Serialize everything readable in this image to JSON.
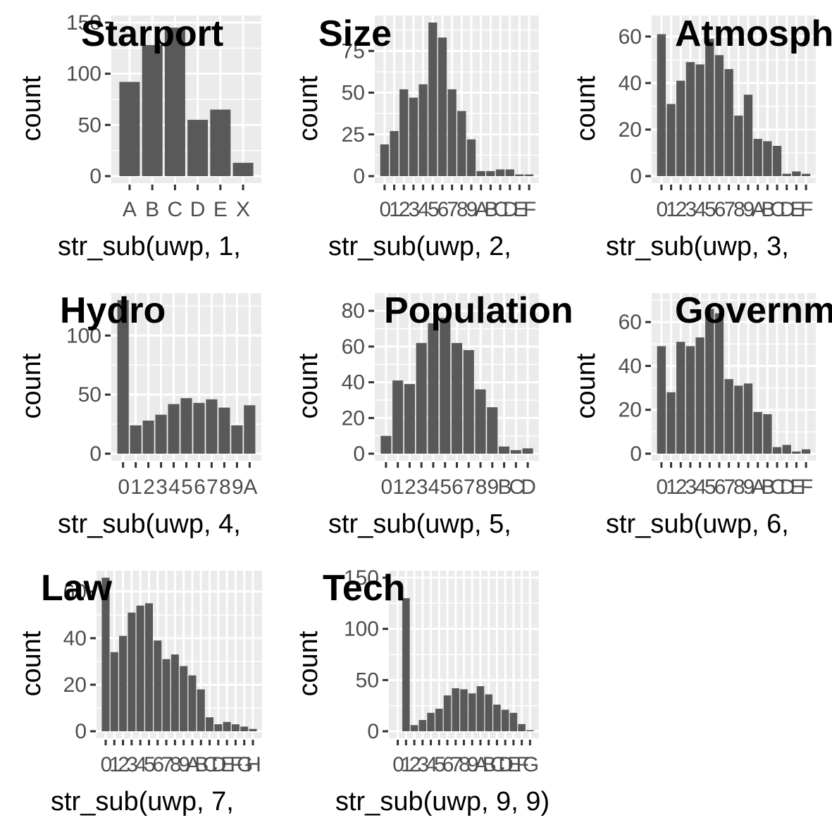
{
  "chart_data": [
    {
      "type": "bar",
      "title": "Starport",
      "xlabel": "str_sub(uwp, 1,",
      "ylabel": "count",
      "categories": [
        "A",
        "B",
        "C",
        "D",
        "E",
        "X"
      ],
      "values": [
        92,
        128,
        145,
        55,
        65,
        13
      ],
      "ylim": [
        0,
        150
      ],
      "yticks": [
        "0",
        "50",
        "100",
        "150"
      ],
      "grid": true,
      "legend": "none"
    },
    {
      "type": "bar",
      "title": "Size",
      "xlabel": "str_sub(uwp, 2,",
      "ylabel": "count",
      "categories": [
        "0",
        "1",
        "2",
        "3",
        "4",
        "5",
        "6",
        "7",
        "8",
        "9",
        "A",
        "B",
        "C",
        "D",
        "E",
        "F"
      ],
      "values": [
        19,
        27,
        52,
        47,
        55,
        92,
        83,
        52,
        39,
        22,
        3,
        3,
        4,
        4,
        1,
        1
      ],
      "ylim": [
        0,
        92
      ],
      "yticks": [
        "0",
        "25",
        "50",
        "75"
      ],
      "grid": true,
      "legend": "none"
    },
    {
      "type": "bar",
      "title": "Atmosphere",
      "xlabel": "str_sub(uwp, 3,",
      "ylabel": "count",
      "categories": [
        "0",
        "1",
        "2",
        "3",
        "4",
        "5",
        "6",
        "7",
        "8",
        "9",
        "A",
        "B",
        "C",
        "D",
        "E",
        "F"
      ],
      "values": [
        61,
        31,
        41,
        49,
        48,
        59,
        52,
        46,
        26,
        35,
        16,
        15,
        13,
        1,
        2,
        1
      ],
      "ylim": [
        0,
        66
      ],
      "yticks": [
        "0",
        "20",
        "40",
        "60"
      ],
      "grid": true,
      "legend": "none"
    },
    {
      "type": "bar",
      "title": "Hydro",
      "xlabel": "str_sub(uwp, 4,",
      "ylabel": "count",
      "categories": [
        "0",
        "1",
        "2",
        "3",
        "4",
        "5",
        "6",
        "7",
        "8",
        "9",
        "A"
      ],
      "values": [
        130,
        24,
        28,
        33,
        42,
        47,
        43,
        46,
        39,
        24,
        41
      ],
      "ylim": [
        0,
        130
      ],
      "yticks": [
        "0",
        "50",
        "100"
      ],
      "grid": true,
      "legend": "none"
    },
    {
      "type": "bar",
      "title": "Population",
      "xlabel": "str_sub(uwp, 5,",
      "ylabel": "count",
      "categories": [
        "0",
        "1",
        "2",
        "3",
        "4",
        "5",
        "6",
        "7",
        "8",
        "9",
        "B",
        "C",
        "D"
      ],
      "values": [
        10,
        41,
        39,
        62,
        73,
        76,
        62,
        58,
        36,
        26,
        4,
        2,
        3
      ],
      "ylim": [
        0,
        86
      ],
      "yticks": [
        "0",
        "20",
        "40",
        "60",
        "80"
      ],
      "grid": true,
      "legend": "none"
    },
    {
      "type": "bar",
      "title": "Government",
      "xlabel": "str_sub(uwp, 6,",
      "ylabel": "count",
      "categories": [
        "0",
        "1",
        "2",
        "3",
        "4",
        "5",
        "6",
        "7",
        "8",
        "9",
        "A",
        "B",
        "C",
        "D",
        "E",
        "F"
      ],
      "values": [
        49,
        28,
        51,
        49,
        53,
        66,
        64,
        34,
        31,
        32,
        19,
        18,
        3,
        4,
        1,
        2
      ],
      "ylim": [
        0,
        70
      ],
      "yticks": [
        "0",
        "20",
        "40",
        "60"
      ],
      "grid": true,
      "legend": "none"
    },
    {
      "type": "bar",
      "title": "Law",
      "xlabel": "str_sub(uwp, 7,",
      "ylabel": "count",
      "categories": [
        "0",
        "1",
        "2",
        "3",
        "4",
        "5",
        "6",
        "7",
        "8",
        "9",
        "A",
        "B",
        "C",
        "D",
        "E",
        "F",
        "G",
        "H"
      ],
      "values": [
        66,
        34,
        41,
        51,
        54,
        55,
        39,
        31,
        33,
        28,
        24,
        18,
        6,
        3,
        4,
        3,
        2,
        1
      ],
      "ylim": [
        0,
        66
      ],
      "yticks": [
        "0",
        "20",
        "40",
        "60"
      ],
      "grid": true,
      "legend": "none"
    },
    {
      "type": "bar",
      "title": "Tech",
      "xlabel": "str_sub(uwp, 9, 9)",
      "ylabel": "count",
      "categories": [
        "0",
        "1",
        "2",
        "3",
        "4",
        "5",
        "6",
        "7",
        "8",
        "9",
        "A",
        "B",
        "C",
        "D",
        "E",
        "F",
        "G"
      ],
      "values": [
        0,
        130,
        6,
        11,
        18,
        22,
        35,
        42,
        41,
        37,
        44,
        36,
        26,
        21,
        18,
        7,
        1
      ],
      "ylim": [
        0,
        150
      ],
      "yticks": [
        "0",
        "50",
        "100",
        "150"
      ],
      "grid": true,
      "legend": "none"
    }
  ]
}
